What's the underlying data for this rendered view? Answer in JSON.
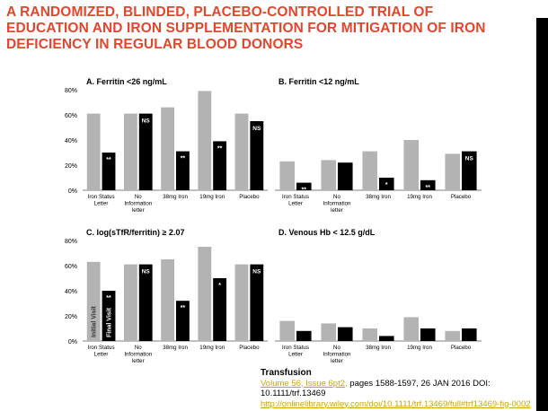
{
  "title": "A RANDOMIZED, BLINDED, PLACEBO-CONTROLLED TRIAL OF EDUCATION AND IRON SUPPLEMENTATION FOR MITIGATION OF IRON DEFICIENCY IN REGULAR BLOOD DONORS",
  "colors": {
    "title": "#e2462c",
    "initial": "#b3b3b3",
    "final": "#000000",
    "link": "#c8a800"
  },
  "chart_data": [
    {
      "id": "A",
      "type": "bar",
      "title": "A. Ferritin <26 ng/mL",
      "categories": [
        "Iron Status Letter",
        "No Information letter",
        "38mg Iron",
        "19mg Iron",
        "Placebo"
      ],
      "series": [
        {
          "name": "Initial Visit",
          "values": [
            61,
            61,
            66,
            79,
            61
          ]
        },
        {
          "name": "Final Visit",
          "values": [
            30,
            61,
            31,
            39,
            55
          ]
        }
      ],
      "annotations": [
        "**",
        "NS",
        "**",
        "**",
        "NS"
      ],
      "ylim": [
        0,
        80
      ],
      "yticks": [
        "0%",
        "20%",
        "40%",
        "60%",
        "80%"
      ],
      "show_y_axis": true
    },
    {
      "id": "B",
      "type": "bar",
      "title": "B. Ferritin <12 ng/mL",
      "categories": [
        "Iron Status Letter",
        "No Information letter",
        "38mg Iron",
        "19mg Iron",
        "Placebo"
      ],
      "series": [
        {
          "name": "Initial Visit",
          "values": [
            23,
            24,
            31,
            40,
            29
          ]
        },
        {
          "name": "Final Visit",
          "values": [
            6,
            22,
            10,
            8,
            31
          ]
        }
      ],
      "annotations": [
        "**",
        "",
        "*",
        "**",
        "NS"
      ],
      "ylim": [
        0,
        80
      ],
      "yticks": [],
      "show_y_axis": false
    },
    {
      "id": "C",
      "type": "bar",
      "title": "C. log(sTfR/ferritin) ≥ 2.07",
      "categories": [
        "Iron Status Letter",
        "No Information letter",
        "38mg Iron",
        "19mg Iron",
        "Placebo"
      ],
      "series": [
        {
          "name": "Initial Visit",
          "values": [
            63,
            61,
            65,
            75,
            61
          ]
        },
        {
          "name": "Final Visit",
          "values": [
            40,
            61,
            32,
            50,
            61
          ]
        }
      ],
      "annotations": [
        "**",
        "NS",
        "**",
        "*",
        "NS"
      ],
      "bar_labels": [
        "Initial Visit",
        "Final Visit"
      ],
      "ylim": [
        0,
        80
      ],
      "yticks": [
        "0%",
        "20%",
        "40%",
        "60%",
        "80%"
      ],
      "show_y_axis": true
    },
    {
      "id": "D",
      "type": "bar",
      "title": "D. Venous Hb < 12.5 g/dL",
      "categories": [
        "Iron Status Letter",
        "No Information letter",
        "38mg Iron",
        "19mg Iron",
        "Placebo"
      ],
      "series": [
        {
          "name": "Initial Visit",
          "values": [
            16,
            14,
            10,
            19,
            8
          ]
        },
        {
          "name": "Final Visit",
          "values": [
            8,
            11,
            4,
            10,
            10
          ]
        }
      ],
      "annotations": [
        "",
        "",
        "",
        "",
        ""
      ],
      "ylim": [
        0,
        80
      ],
      "yticks": [],
      "show_y_axis": false
    }
  ],
  "citation": {
    "journal": "Transfusion",
    "volume_link": "Volume 56, Issue 6pt2,",
    "details": " pages 1588-1597, 26 JAN 2016 DOI: 10.1111/trf.13469",
    "url": "http://onlinelibrary.wiley.com/doi/10.1111/trf.13469/full#trf13469-fig-0002"
  }
}
